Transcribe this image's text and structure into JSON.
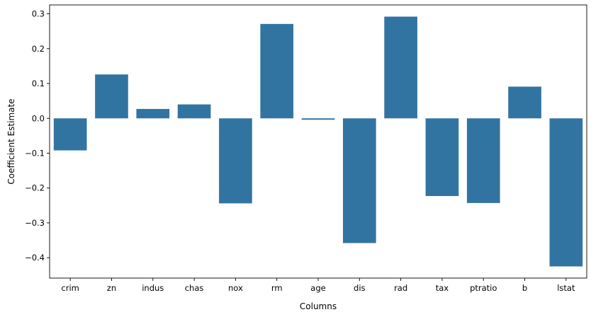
{
  "chart_data": {
    "type": "bar",
    "title": "",
    "xlabel": "Columns",
    "ylabel": "Coefficient Estimate",
    "categories": [
      "crim",
      "zn",
      "indus",
      "chas",
      "nox",
      "rm",
      "age",
      "dis",
      "rad",
      "tax",
      "ptratio",
      "b",
      "lstat"
    ],
    "values": [
      -0.092,
      0.126,
      0.027,
      0.04,
      -0.244,
      0.271,
      -0.004,
      -0.358,
      0.292,
      -0.223,
      -0.243,
      0.091,
      -0.425
    ],
    "ylim": [
      -0.4585,
      0.3255
    ],
    "yticks": [
      -0.4,
      -0.3,
      -0.2,
      -0.1,
      0.0,
      0.1,
      0.2,
      0.3
    ],
    "ytick_labels": [
      "−0.4",
      "−0.3",
      "−0.2",
      "−0.1",
      "0.0",
      "0.1",
      "0.2",
      "0.3"
    ],
    "grid": false,
    "legend": "none",
    "colors": {
      "bar": "#3274a1",
      "axis": "#000000"
    }
  }
}
